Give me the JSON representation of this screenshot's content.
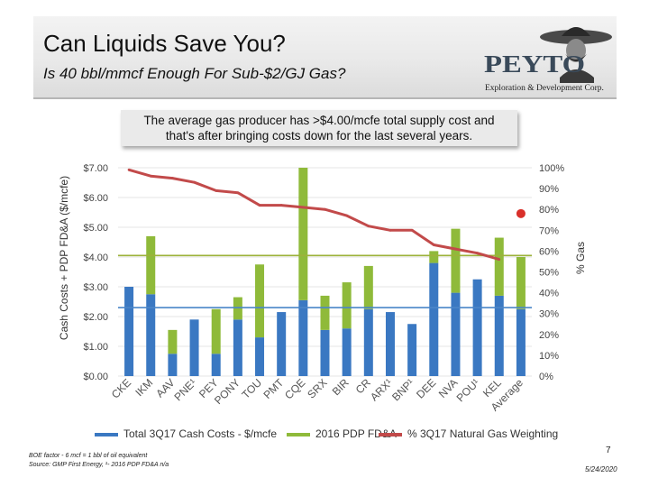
{
  "slide": {
    "title": "Can Liquids Save You?",
    "subtitle": "Is 40 bbl/mmcf Enough For Sub-$2/GJ Gas?",
    "callout_line1": "The average gas producer has >$4.00/mcfe total supply cost and",
    "callout_line2": "that's after bringing costs down for the last several years.",
    "logo_name": "PEYTO",
    "logo_tagline": "Exploration & Development Corp.",
    "footnote_1": "BOE factor - 6 mcf = 1 bbl of oil equivalent",
    "footnote_2": "Source: GMP First Energy, ¹- 2016 PDP FD&A n/a",
    "page_number": "7",
    "date": "5/24/2020"
  },
  "colors": {
    "cash_cost": "#3a78c2",
    "fda": "#8fba3a",
    "gas_pct": "#c24a4a",
    "peyto_marker": "#d9302a",
    "avg_cost_line": "#4a86c8",
    "avg_total_line": "#9cb23a"
  },
  "chart_data": {
    "type": "bar",
    "stacked": true,
    "categories": [
      "CKE",
      "IKM",
      "AAV",
      "PNE¹",
      "PEY",
      "PONY",
      "TOU",
      "PMT",
      "CQE",
      "SRX",
      "BIR",
      "CR",
      "ARX¹",
      "BNP¹",
      "DEE",
      "NVA",
      "POU¹",
      "KEL",
      "Average"
    ],
    "series": [
      {
        "name": "Total 3Q17 Cash Costs - $/mcfe",
        "axis": "left",
        "values": [
          3.0,
          2.75,
          0.75,
          1.9,
          0.75,
          1.9,
          1.3,
          2.15,
          2.55,
          1.55,
          1.6,
          2.25,
          2.15,
          1.75,
          3.8,
          2.8,
          3.25,
          2.7,
          2.25
        ]
      },
      {
        "name": "2016 PDP FD&A",
        "axis": "left",
        "values": [
          0,
          1.95,
          0.8,
          0,
          1.5,
          0.75,
          2.45,
          0,
          4.45,
          1.15,
          1.55,
          1.45,
          0,
          0,
          0.4,
          2.15,
          0,
          1.95,
          1.75
        ]
      },
      {
        "name": "% 3Q17 Natural Gas Weighting",
        "axis": "right",
        "type": "line",
        "values": [
          99,
          96,
          95,
          93,
          89,
          88,
          82,
          82,
          81,
          80,
          77,
          72,
          70,
          70,
          63,
          61,
          59,
          56,
          null
        ]
      }
    ],
    "peyto_marker": {
      "category": "Average",
      "value": 78,
      "axis": "right"
    },
    "reference_lines": {
      "average_cash_cost": 2.3,
      "average_total_cost": 4.05
    },
    "ylabel": "Cash Costs + PDP FD&A ($/mcfe)",
    "y2label": "% Gas",
    "ylim": [
      0,
      7
    ],
    "y2lim": [
      0,
      100
    ],
    "y_ticks": [
      "$0.00",
      "$1.00",
      "$2.00",
      "$3.00",
      "$4.00",
      "$5.00",
      "$6.00",
      "$7.00"
    ],
    "y2_ticks": [
      "0%",
      "10%",
      "20%",
      "30%",
      "40%",
      "50%",
      "60%",
      "70%",
      "80%",
      "90%",
      "100%"
    ],
    "legend": [
      "Total 3Q17 Cash Costs - $/mcfe",
      "2016 PDP FD&A",
      "% 3Q17 Natural Gas Weighting"
    ],
    "legend_placement": "bottom"
  }
}
